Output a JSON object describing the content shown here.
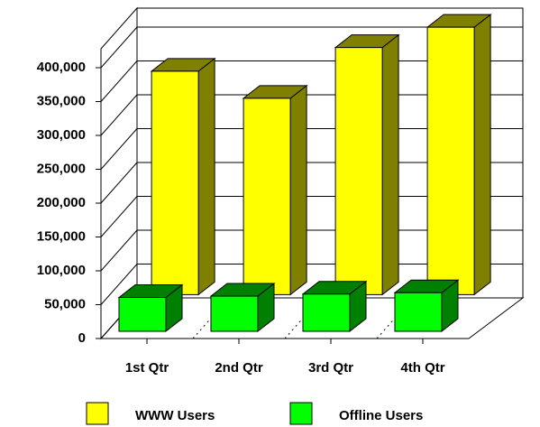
{
  "chart_data": {
    "type": "bar3d",
    "categories": [
      "1st Qtr",
      "2nd Qtr",
      "3rd Qtr",
      "4th Qtr"
    ],
    "series": [
      {
        "name": "WWW Users",
        "color": "#ffff00",
        "values": [
          330000,
          290000,
          365000,
          395000
        ]
      },
      {
        "name": "Offline Users",
        "color": "#00ff00",
        "values": [
          50000,
          52000,
          55000,
          57000
        ]
      }
    ],
    "ylim": [
      0,
      400000
    ],
    "yticks": [
      0,
      {
        "value": 50000,
        "label": "50,000"
      },
      {
        "value": 100000,
        "label": "100,000"
      },
      {
        "value": 150000,
        "label": "150,000"
      },
      {
        "value": 200000,
        "label": "200,000"
      },
      {
        "value": 250000,
        "label": "250,000"
      },
      {
        "value": 300000,
        "label": "300,000"
      },
      {
        "value": 350000,
        "label": "350,000"
      },
      {
        "value": 400000,
        "label": "400,000"
      }
    ],
    "grid": true
  }
}
